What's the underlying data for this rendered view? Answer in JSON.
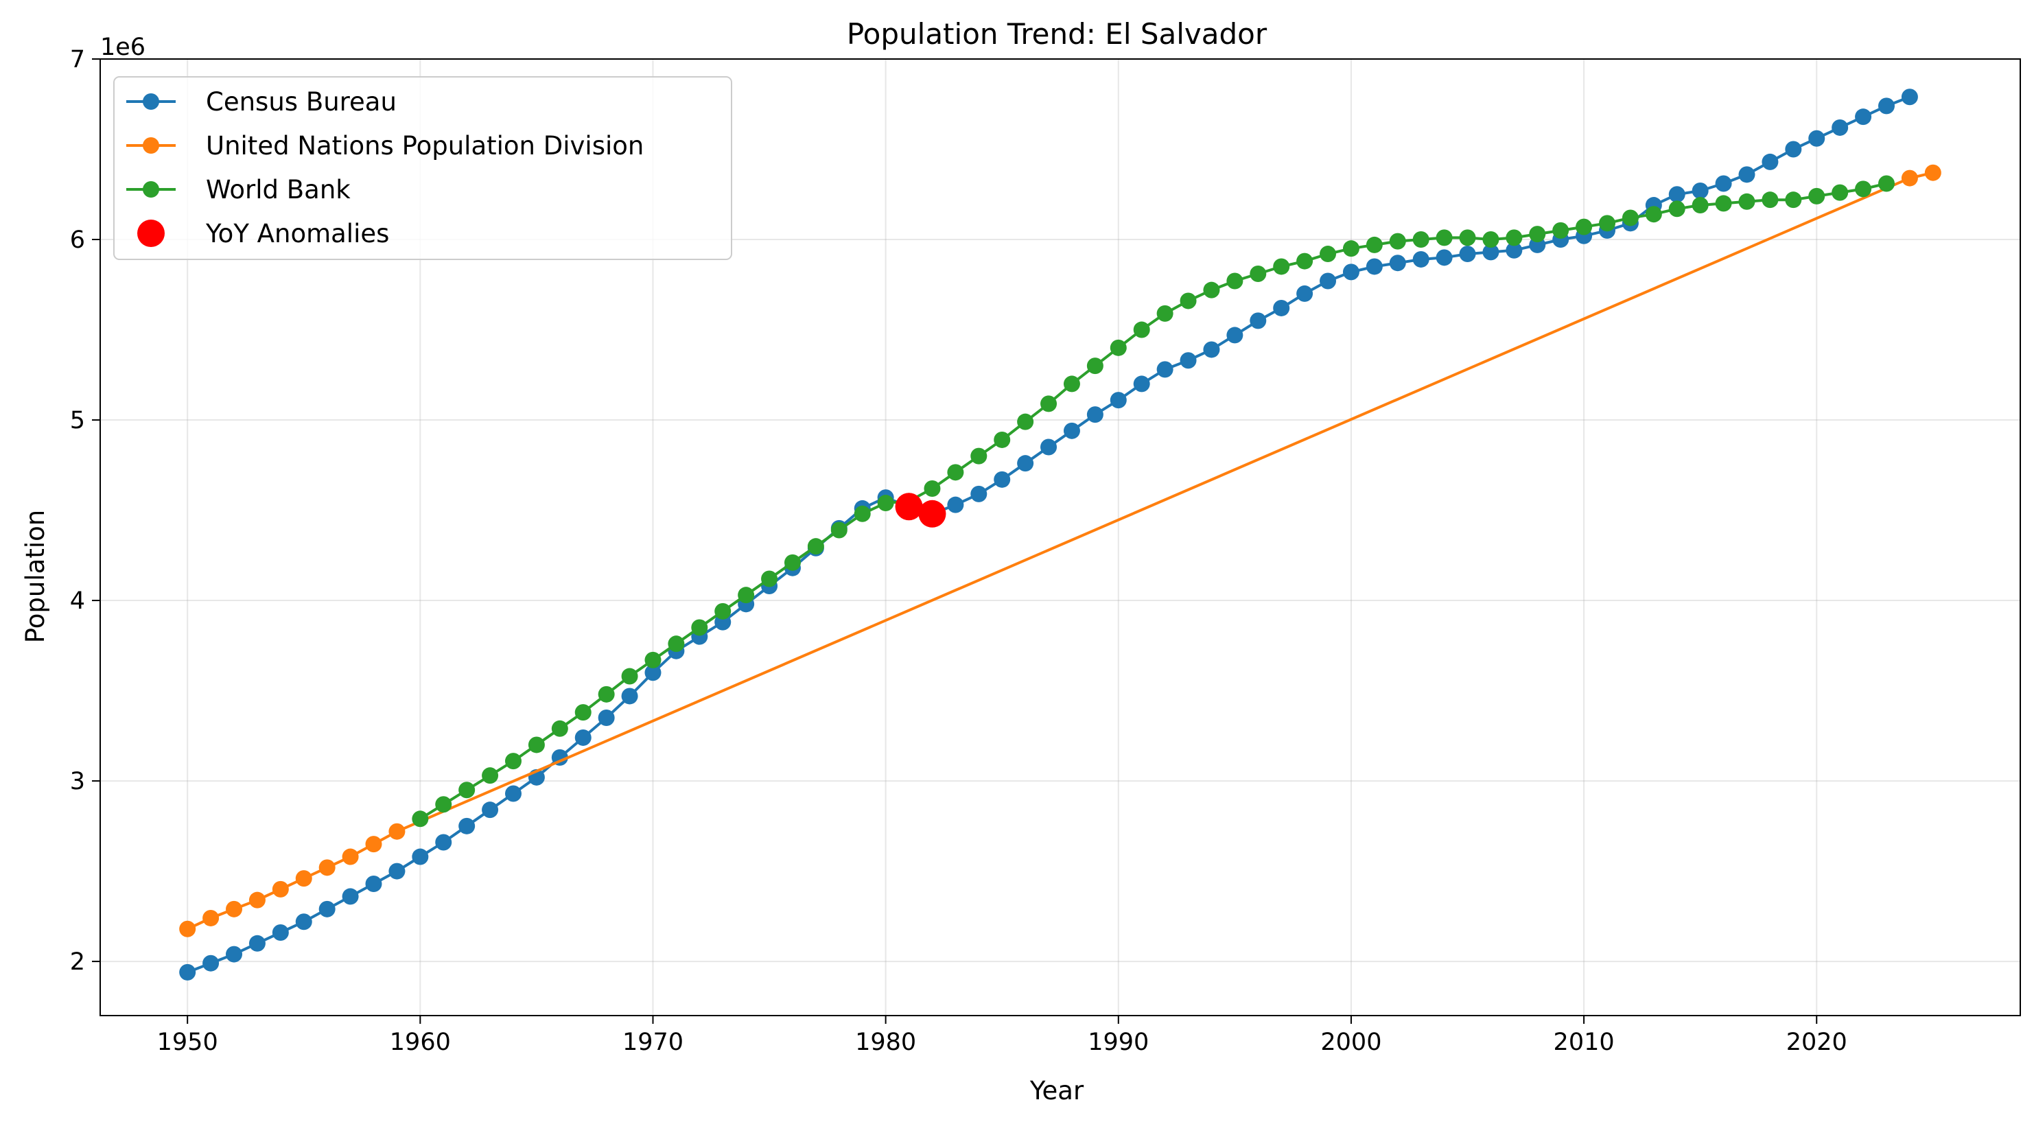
{
  "chart_data": {
    "type": "line",
    "title": "Population Trend: El Salvador",
    "xlabel": "Year",
    "ylabel": "Population",
    "y_offset_label": "1e6",
    "xlim": [
      1946.25,
      2028.75
    ],
    "ylim": [
      1.7,
      7.0
    ],
    "x_ticks": [
      1950,
      1960,
      1970,
      1980,
      1990,
      2000,
      2010,
      2020
    ],
    "x_tick_labels": [
      "1950",
      "1960",
      "1970",
      "1980",
      "1990",
      "2000",
      "2010",
      "2020"
    ],
    "y_ticks": [
      2,
      3,
      4,
      5,
      6,
      7
    ],
    "y_tick_labels": [
      "2",
      "3",
      "4",
      "5",
      "6",
      "7"
    ],
    "grid": true,
    "legend_position": "top-left",
    "series": [
      {
        "name": "Census Bureau",
        "color": "#1f77b4",
        "x": [
          1950,
          1951,
          1952,
          1953,
          1954,
          1955,
          1956,
          1957,
          1958,
          1959,
          1960,
          1961,
          1962,
          1963,
          1964,
          1965,
          1966,
          1967,
          1968,
          1969,
          1970,
          1971,
          1972,
          1973,
          1974,
          1975,
          1976,
          1977,
          1978,
          1979,
          1980,
          1981,
          1982,
          1983,
          1984,
          1985,
          1986,
          1987,
          1988,
          1989,
          1990,
          1991,
          1992,
          1993,
          1994,
          1995,
          1996,
          1997,
          1998,
          1999,
          2000,
          2001,
          2002,
          2003,
          2004,
          2005,
          2006,
          2007,
          2008,
          2009,
          2010,
          2011,
          2012,
          2013,
          2014,
          2015,
          2016,
          2017,
          2018,
          2019,
          2020,
          2021,
          2022,
          2023,
          2024
        ],
        "y": [
          1.94,
          1.99,
          2.04,
          2.1,
          2.16,
          2.22,
          2.29,
          2.36,
          2.43,
          2.5,
          2.58,
          2.66,
          2.75,
          2.84,
          2.93,
          3.02,
          3.13,
          3.24,
          3.35,
          3.47,
          3.6,
          3.72,
          3.8,
          3.88,
          3.98,
          4.08,
          4.18,
          4.29,
          4.4,
          4.51,
          4.57,
          4.52,
          4.48,
          4.53,
          4.59,
          4.67,
          4.76,
          4.85,
          4.94,
          5.03,
          5.11,
          5.2,
          5.28,
          5.33,
          5.39,
          5.47,
          5.55,
          5.62,
          5.7,
          5.77,
          5.82,
          5.85,
          5.87,
          5.89,
          5.9,
          5.92,
          5.93,
          5.94,
          5.97,
          6.0,
          6.02,
          6.05,
          6.09,
          6.19,
          6.25,
          6.27,
          6.31,
          6.36,
          6.43,
          6.5,
          6.56,
          6.62,
          6.68,
          6.74,
          6.79
        ]
      },
      {
        "name": "United Nations Population Division",
        "color": "#ff7f0e",
        "x": [
          1950,
          1951,
          1952,
          1953,
          1954,
          1955,
          1956,
          1957,
          1958,
          1959,
          2024,
          2025
        ],
        "y": [
          2.18,
          2.24,
          2.29,
          2.34,
          2.4,
          2.46,
          2.52,
          2.58,
          2.65,
          2.72,
          6.34,
          6.37
        ]
      },
      {
        "name": "World Bank",
        "color": "#2ca02c",
        "x": [
          1960,
          1961,
          1962,
          1963,
          1964,
          1965,
          1966,
          1967,
          1968,
          1969,
          1970,
          1971,
          1972,
          1973,
          1974,
          1975,
          1976,
          1977,
          1978,
          1979,
          1980,
          1981,
          1982,
          1983,
          1984,
          1985,
          1986,
          1987,
          1988,
          1989,
          1990,
          1991,
          1992,
          1993,
          1994,
          1995,
          1996,
          1997,
          1998,
          1999,
          2000,
          2001,
          2002,
          2003,
          2004,
          2005,
          2006,
          2007,
          2008,
          2009,
          2010,
          2011,
          2012,
          2013,
          2014,
          2015,
          2016,
          2017,
          2018,
          2019,
          2020,
          2021,
          2022,
          2023
        ],
        "y": [
          2.79,
          2.87,
          2.95,
          3.03,
          3.11,
          3.2,
          3.29,
          3.38,
          3.48,
          3.58,
          3.67,
          3.76,
          3.85,
          3.94,
          4.03,
          4.12,
          4.21,
          4.3,
          4.39,
          4.48,
          4.54,
          4.55,
          4.62,
          4.71,
          4.8,
          4.89,
          4.99,
          5.09,
          5.2,
          5.3,
          5.4,
          5.5,
          5.59,
          5.66,
          5.72,
          5.77,
          5.81,
          5.85,
          5.88,
          5.92,
          5.95,
          5.97,
          5.99,
          6.0,
          6.01,
          6.01,
          6.0,
          6.01,
          6.03,
          6.05,
          6.07,
          6.09,
          6.12,
          6.14,
          6.17,
          6.19,
          6.2,
          6.21,
          6.22,
          6.22,
          6.24,
          6.26,
          6.28,
          6.31
        ]
      }
    ],
    "anomalies": {
      "name": "YoY Anomalies",
      "color": "#ff0000",
      "x": [
        1981,
        1982
      ],
      "y": [
        4.52,
        4.48
      ]
    }
  }
}
